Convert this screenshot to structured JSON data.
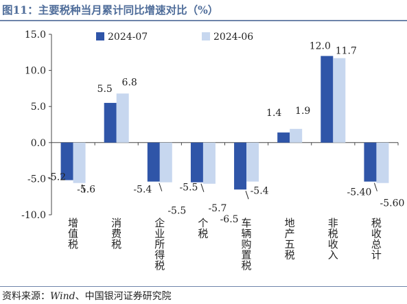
{
  "header": {
    "title": "图11：主要税种当月累计同比增速对比（%）"
  },
  "footer": {
    "source_label": "资料来源：",
    "source_en": "Wind",
    "source_rest": "、中国银河证券研究院"
  },
  "colors": {
    "series_2024_07": "#2f55a8",
    "series_2024_06": "#c7d7ef",
    "title": "#4f6d9a"
  },
  "chart_data": {
    "type": "bar",
    "categories": [
      "增值税",
      "消费税",
      "企业所得税",
      "个税",
      "车辆购置税",
      "地产五税",
      "非税收入",
      "税收总计"
    ],
    "series": [
      {
        "name": "2024-07",
        "values": [
          -5.2,
          5.5,
          -5.4,
          -5.5,
          -6.5,
          1.4,
          12.0,
          -5.4
        ],
        "labels": [
          "-5.2",
          "5.5",
          "-5.4",
          "-5.5",
          "-6.5",
          "1.4",
          "12.0",
          "-5.40"
        ]
      },
      {
        "name": "2024-06",
        "values": [
          -5.6,
          6.8,
          -5.5,
          -5.7,
          -5.4,
          1.9,
          11.7,
          -5.6
        ],
        "labels": [
          "-5.6",
          "6.8",
          "-5.5",
          "-5.7",
          "-5.4",
          "1.9",
          "11.7",
          "-5.60"
        ]
      }
    ],
    "yticks": [
      "15.0",
      "10.0",
      "5.0",
      "0.0",
      "-5.0",
      "-10.0"
    ],
    "ylim": [
      -10,
      15
    ],
    "legend_position": "top",
    "grid": false
  }
}
